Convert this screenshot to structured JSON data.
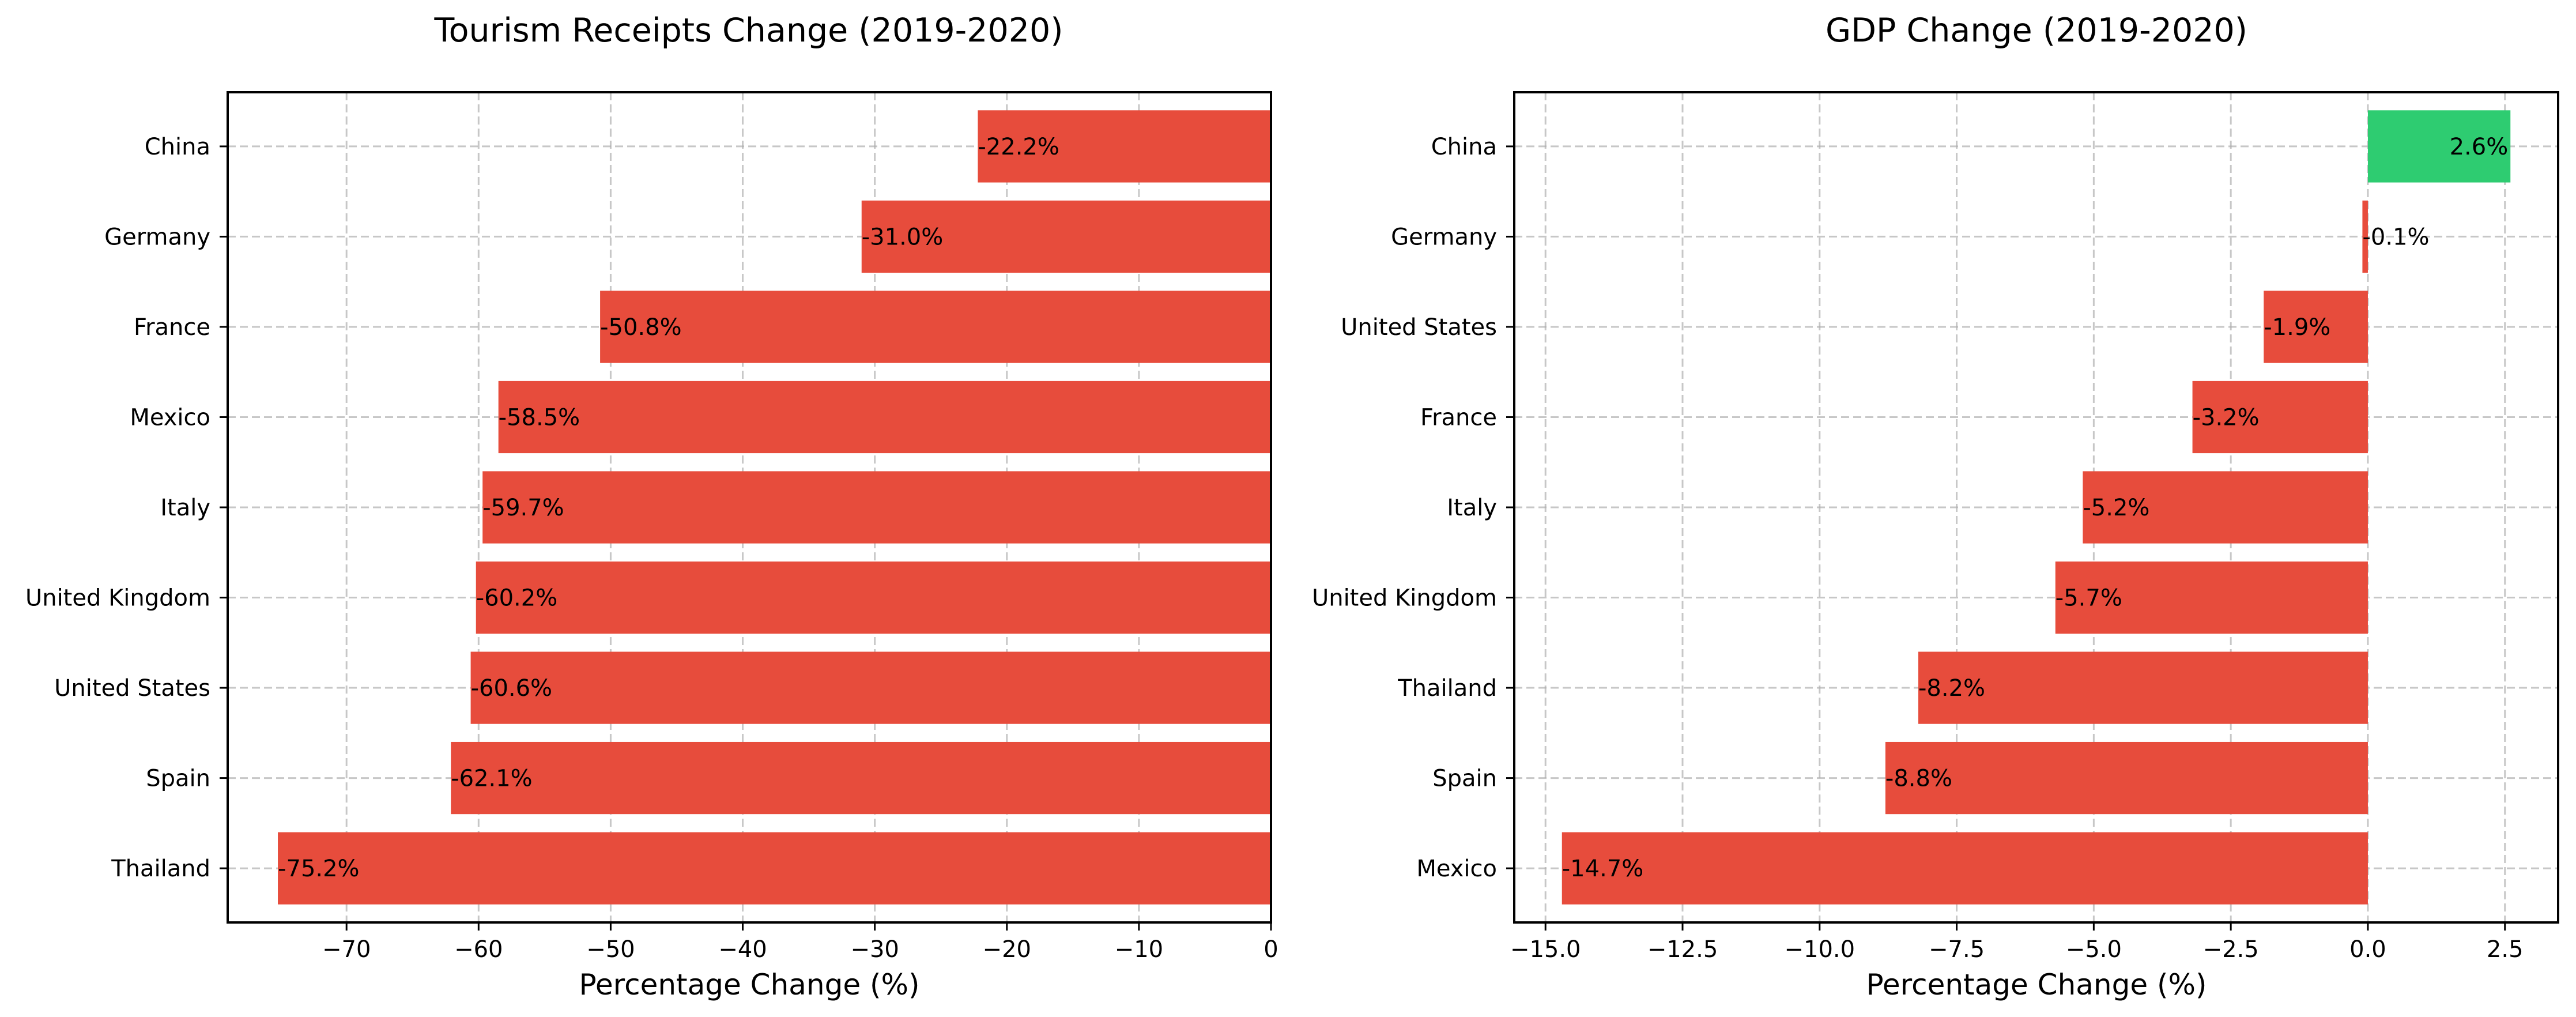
{
  "chart_data": [
    {
      "type": "bar",
      "orientation": "horizontal",
      "title": "Tourism Receipts Change (2019-2020)",
      "xlabel": "Percentage Change (%)",
      "ylabel": "",
      "categories": [
        "China",
        "Germany",
        "France",
        "Mexico",
        "Italy",
        "United Kingdom",
        "United States",
        "Spain",
        "Thailand"
      ],
      "values": [
        -22.2,
        -31.0,
        -50.8,
        -58.5,
        -59.7,
        -60.2,
        -60.6,
        -62.1,
        -75.2
      ],
      "value_labels": [
        "-22.2%",
        "-31.0%",
        "-50.8%",
        "-58.5%",
        "-59.7%",
        "-60.2%",
        "-60.6%",
        "-62.1%",
        "-75.2%"
      ],
      "xlim": [
        -79.0,
        0.0
      ],
      "xticks": [
        -70,
        -60,
        -50,
        -40,
        -30,
        -20,
        -10,
        0
      ],
      "xtick_labels": [
        "−70",
        "−60",
        "−50",
        "−40",
        "−30",
        "−20",
        "−10",
        "0"
      ],
      "grid": true,
      "colors": {
        "negative": "#e74c3c",
        "positive": "#2ecc71"
      }
    },
    {
      "type": "bar",
      "orientation": "horizontal",
      "title": "GDP Change (2019-2020)",
      "xlabel": "Percentage Change (%)",
      "ylabel": "",
      "categories": [
        "China",
        "Germany",
        "United States",
        "France",
        "Italy",
        "United Kingdom",
        "Thailand",
        "Spain",
        "Mexico"
      ],
      "values": [
        2.6,
        -0.1,
        -1.9,
        -3.2,
        -5.2,
        -5.7,
        -8.2,
        -8.8,
        -14.7
      ],
      "value_labels": [
        "2.6%",
        "-0.1%",
        "-1.9%",
        "-3.2%",
        "-5.2%",
        "-5.7%",
        "-8.2%",
        "-8.8%",
        "-14.7%"
      ],
      "xlim": [
        -15.57,
        3.47
      ],
      "xticks": [
        -15.0,
        -12.5,
        -10.0,
        -7.5,
        -5.0,
        -2.5,
        0.0,
        2.5
      ],
      "xtick_labels": [
        "−15.0",
        "−12.5",
        "−10.0",
        "−7.5",
        "−5.0",
        "−2.5",
        "0.0",
        "2.5"
      ],
      "grid": true,
      "colors": {
        "negative": "#e74c3c",
        "positive": "#2ecc71"
      }
    }
  ]
}
